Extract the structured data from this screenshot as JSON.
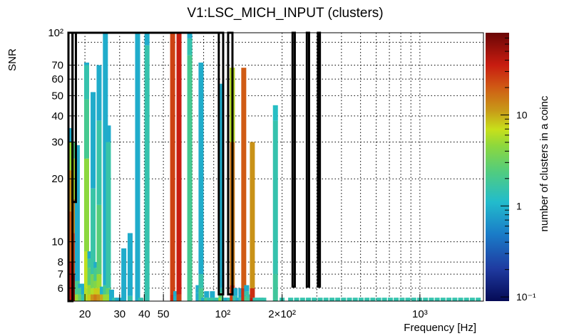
{
  "chart_data": {
    "type": "heatmap",
    "title": "V1:LSC_MICH_INPUT (clusters)",
    "xlabel": "Frequency [Hz]",
    "ylabel": "SNR",
    "zlabel": "number of clusters in a coinc",
    "x_scale": "log",
    "y_scale": "log",
    "z_scale": "log",
    "xlim": [
      16.5,
      2100
    ],
    "ylim": [
      5.2,
      100
    ],
    "zlim": [
      0.09,
      80
    ],
    "grid": true,
    "x_ticks": [
      {
        "value": 20,
        "label": "20"
      },
      {
        "value": 30,
        "label": "30"
      },
      {
        "value": 40,
        "label": "40"
      },
      {
        "value": 50,
        "label": "50"
      },
      {
        "value": 100,
        "label": "10²"
      },
      {
        "value": 200,
        "label": "2×10²"
      },
      {
        "value": 1000,
        "label": "10³"
      }
    ],
    "y_ticks": [
      {
        "value": 6,
        "label": "6"
      },
      {
        "value": 7,
        "label": "7"
      },
      {
        "value": 8,
        "label": "8"
      },
      {
        "value": 10,
        "label": "10"
      },
      {
        "value": 20,
        "label": "20"
      },
      {
        "value": 30,
        "label": "30"
      },
      {
        "value": 40,
        "label": "40"
      },
      {
        "value": 50,
        "label": "50"
      },
      {
        "value": 60,
        "label": "60"
      },
      {
        "value": 70,
        "label": "70"
      },
      {
        "value": 100,
        "label": "10²"
      }
    ],
    "z_ticks": [
      {
        "value": 0.1,
        "label": "10⁻¹"
      },
      {
        "value": 1,
        "label": "1"
      },
      {
        "value": 10,
        "label": "10"
      }
    ],
    "columns": [
      {
        "f": 17.0,
        "segments": [
          [
            5.2,
            8,
            40
          ],
          [
            8,
            14,
            20
          ],
          [
            14,
            22,
            12
          ],
          [
            22,
            30,
            5
          ],
          [
            30,
            35,
            0.9
          ]
        ]
      },
      {
        "f": 17.6,
        "segments": [
          [
            5.2,
            7,
            70
          ],
          [
            7,
            11,
            25
          ],
          [
            11,
            16,
            14
          ],
          [
            16,
            25,
            6
          ],
          [
            25,
            30,
            2.5
          ]
        ]
      },
      {
        "f": 18.3,
        "segments": [
          [
            5.2,
            5.6,
            5
          ],
          [
            5.6,
            6.5,
            2
          ],
          [
            6.5,
            29,
            0.9
          ]
        ]
      },
      {
        "f": 19.0,
        "segments": [
          [
            5.2,
            5.6,
            3
          ],
          [
            5.6,
            6,
            2
          ],
          [
            6,
            6.3,
            0.9
          ]
        ]
      },
      {
        "f": 19.7,
        "segments": [
          [
            5.2,
            5.6,
            1.5
          ],
          [
            5.6,
            6.3,
            0.9
          ]
        ]
      },
      {
        "f": 20.4,
        "segments": [
          [
            5.2,
            6,
            6
          ],
          [
            6,
            9,
            6.5
          ],
          [
            9,
            25,
            4.5
          ],
          [
            25,
            48,
            2
          ],
          [
            48,
            70,
            1.5
          ],
          [
            70,
            72,
            0.9
          ]
        ]
      },
      {
        "f": 21.2,
        "segments": [
          [
            5.2,
            5.6,
            8
          ],
          [
            5.6,
            6.2,
            5
          ],
          [
            6.2,
            7.5,
            2.5
          ],
          [
            7.5,
            8.3,
            1.8
          ],
          [
            8.3,
            9,
            0.9
          ]
        ]
      },
      {
        "f": 22.0,
        "segments": [
          [
            5.2,
            5.6,
            12
          ],
          [
            5.6,
            6,
            6
          ],
          [
            6,
            7,
            3.5
          ],
          [
            7,
            18,
            1.6
          ],
          [
            18,
            52,
            0.9
          ]
        ]
      },
      {
        "f": 22.8,
        "segments": [
          [
            5.2,
            5.6,
            15
          ],
          [
            5.6,
            6,
            8
          ],
          [
            6,
            6.5,
            4
          ],
          [
            6.5,
            7.5,
            2
          ],
          [
            7.5,
            8,
            0.9
          ]
        ]
      },
      {
        "f": 23.6,
        "segments": [
          [
            5.2,
            5.6,
            12
          ],
          [
            5.6,
            6,
            8
          ],
          [
            6,
            7,
            5
          ],
          [
            7,
            15,
            2.5
          ],
          [
            15,
            38,
            1.6
          ],
          [
            38,
            70,
            0.9
          ]
        ]
      },
      {
        "f": 24.5,
        "segments": [
          [
            5.2,
            5.6,
            10
          ],
          [
            5.6,
            6.1,
            1
          ]
        ]
      },
      {
        "f": 25.4,
        "segments": [
          [
            5.2,
            5.6,
            5
          ],
          [
            5.6,
            6.2,
            2
          ],
          [
            6.2,
            100,
            0.9
          ]
        ]
      },
      {
        "f": 26.3,
        "segments": [
          [
            5.2,
            5.6,
            5
          ],
          [
            5.6,
            6,
            3
          ],
          [
            6,
            30,
            1.6
          ],
          [
            30,
            36,
            0.9
          ]
        ]
      },
      {
        "f": 27.3,
        "segments": [
          [
            5.2,
            5.9,
            0.9
          ]
        ]
      },
      {
        "f": 28.3,
        "segments": [
          [
            5.2,
            5.4,
            1.5
          ]
        ]
      },
      {
        "f": 29.3,
        "segments": [
          [
            5.2,
            5.4,
            0.9
          ]
        ]
      },
      {
        "f": 30.4,
        "segments": [
          [
            5.2,
            5.4,
            0.9
          ]
        ]
      },
      {
        "f": 31.5,
        "segments": [
          [
            5.2,
            9.3,
            0.9
          ]
        ]
      },
      {
        "f": 33.9,
        "segments": [
          [
            5.2,
            5.5,
            1.5
          ],
          [
            5.5,
            11,
            0.9
          ]
        ]
      },
      {
        "f": 37.0,
        "segments": [
          [
            5.2,
            100,
            0.9
          ]
        ]
      },
      {
        "f": 38.4,
        "segments": [
          [
            5.2,
            5.4,
            1.5
          ]
        ]
      },
      {
        "f": 41.3,
        "segments": [
          [
            5.2,
            87,
            1.5
          ],
          [
            87,
            100,
            0.9
          ]
        ]
      },
      {
        "f": 55.7,
        "segments": [
          [
            5.2,
            5.6,
            30
          ],
          [
            5.6,
            100,
            25
          ]
        ]
      },
      {
        "f": 57.8,
        "segments": [
          [
            5.2,
            5.8,
            1.0
          ],
          [
            5.8,
            5.5,
            0.9
          ]
        ]
      },
      {
        "f": 60.0,
        "segments": [
          [
            5.2,
            5.6,
            25
          ],
          [
            5.6,
            100,
            35
          ]
        ]
      },
      {
        "f": 68.0,
        "segments": [
          [
            5.2,
            78,
            2
          ],
          [
            78,
            94,
            1.5
          ],
          [
            94,
            100,
            0.9
          ]
        ]
      },
      {
        "f": 75.0,
        "segments": [
          [
            5.2,
            5.7,
            0.9
          ],
          [
            5.7,
            6.2,
            0.9
          ]
        ]
      },
      {
        "f": 77.6,
        "segments": [
          [
            5.2,
            6,
            2
          ],
          [
            6,
            7,
            1.5
          ],
          [
            7,
            72,
            0.9
          ]
        ]
      },
      {
        "f": 80.0,
        "segments": [
          [
            5.2,
            5.4,
            0.9
          ]
        ]
      },
      {
        "f": 82.8,
        "segments": [
          [
            5.2,
            5.4,
            2
          ],
          [
            5.4,
            5.8,
            0.9
          ]
        ]
      },
      {
        "f": 85.7,
        "segments": [
          [
            5.2,
            5.4,
            1.5
          ]
        ]
      },
      {
        "f": 88.6,
        "segments": [
          [
            5.2,
            5.4,
            1.8
          ],
          [
            5.4,
            5.8,
            0.9
          ]
        ]
      },
      {
        "f": 91.6,
        "segments": [
          [
            5.2,
            5.4,
            1.5
          ]
        ]
      },
      {
        "f": 94.7,
        "segments": [
          [
            5.2,
            5.4,
            1.5
          ]
        ]
      },
      {
        "f": 97.9,
        "segments": [
          [
            5.2,
            5.4,
            5
          ],
          [
            5.4,
            5.7,
            2.5
          ],
          [
            5.7,
            6,
            1.5
          ],
          [
            6,
            57,
            0.9
          ]
        ]
      },
      {
        "f": 101.2,
        "segments": [
          [
            5.2,
            5.4,
            1.5
          ]
        ]
      },
      {
        "f": 104.6,
        "segments": [
          [
            5.2,
            5.4,
            0.9
          ]
        ]
      },
      {
        "f": 108.2,
        "segments": [
          [
            5.2,
            5.4,
            1.5
          ]
        ]
      },
      {
        "f": 111.8,
        "segments": [
          [
            5.2,
            6.2,
            25
          ],
          [
            6.2,
            68,
            15
          ],
          [
            68,
            30,
            6
          ]
        ]
      },
      {
        "f": 115.6,
        "segments": [
          [
            5.2,
            5.5,
            1.5
          ],
          [
            5.5,
            6,
            0.9
          ]
        ]
      },
      {
        "f": 119.5,
        "segments": [
          [
            5.2,
            5.4,
            0.9
          ]
        ]
      },
      {
        "f": 123.6,
        "segments": [
          [
            5.2,
            5.4,
            1.5
          ],
          [
            5.4,
            5.6,
            0.9
          ],
          [
            5.6,
            6,
            0.9
          ]
        ]
      },
      {
        "f": 127.8,
        "segments": [
          [
            5.2,
            6,
            30
          ],
          [
            6,
            68,
            20
          ]
        ]
      },
      {
        "f": 132.2,
        "segments": [
          [
            5.2,
            5.5,
            2
          ],
          [
            5.5,
            5.8,
            1.5
          ],
          [
            5.8,
            6.2,
            0.9
          ]
        ]
      },
      {
        "f": 136.7,
        "segments": [
          [
            5.2,
            5.4,
            1.8
          ],
          [
            5.4,
            5.6,
            1.5
          ]
        ]
      },
      {
        "f": 141.3,
        "segments": [
          [
            5.2,
            5.4,
            40
          ],
          [
            5.4,
            6,
            30
          ],
          [
            6,
            30,
            12
          ]
        ]
      },
      {
        "f": 146.1,
        "segments": [
          [
            5.2,
            5.4,
            1.5
          ]
        ]
      },
      {
        "f": 151.1,
        "segments": [
          [
            5.2,
            5.4,
            1.5
          ]
        ]
      },
      {
        "f": 156.2,
        "segments": [
          [
            5.2,
            5.4,
            1.5
          ]
        ]
      },
      {
        "f": 161.5,
        "segments": [
          [
            5.2,
            5.4,
            1.5
          ]
        ]
      },
      {
        "f": 185.0,
        "segments": [
          [
            5.2,
            7,
            1.8
          ],
          [
            7,
            38,
            1.5
          ],
          [
            38,
            45,
            1.2
          ]
        ]
      },
      {
        "f": 200.0,
        "segments": [
          [
            5.2,
            5.4,
            1.5
          ]
        ]
      },
      {
        "f": 221.0,
        "segments": [
          [
            5.2,
            5.4,
            1.5
          ]
        ]
      },
      {
        "f": 237.0,
        "segments": [
          [
            5.2,
            5.4,
            1.5
          ]
        ]
      },
      {
        "f": 254.0,
        "segments": [
          [
            5.2,
            5.4,
            1.5
          ]
        ]
      },
      {
        "f": 272.0,
        "segments": [
          [
            5.2,
            5.4,
            1.5
          ]
        ]
      },
      {
        "f": 291.0,
        "segments": [
          [
            5.2,
            5.4,
            1.5
          ]
        ]
      },
      {
        "f": 312.0,
        "segments": [
          [
            5.2,
            5.4,
            1.5
          ]
        ]
      },
      {
        "f": 334.0,
        "segments": [
          [
            5.2,
            5.4,
            1.5
          ]
        ]
      },
      {
        "f": 358.0,
        "segments": [
          [
            5.2,
            5.4,
            1.5
          ]
        ]
      },
      {
        "f": 383.0,
        "segments": [
          [
            5.2,
            5.4,
            1.5
          ]
        ]
      },
      {
        "f": 410.0,
        "segments": [
          [
            5.2,
            5.4,
            1.5
          ]
        ]
      },
      {
        "f": 439.0,
        "segments": [
          [
            5.2,
            5.4,
            1.5
          ]
        ]
      },
      {
        "f": 470.0,
        "segments": [
          [
            5.2,
            5.4,
            1.5
          ]
        ]
      },
      {
        "f": 503.0,
        "segments": [
          [
            5.2,
            5.4,
            1.5
          ]
        ]
      },
      {
        "f": 539.0,
        "segments": [
          [
            5.2,
            5.4,
            1.5
          ]
        ]
      },
      {
        "f": 577.0,
        "segments": [
          [
            5.2,
            5.4,
            1.5
          ]
        ]
      },
      {
        "f": 618.0,
        "segments": [
          [
            5.2,
            5.4,
            1.5
          ]
        ]
      },
      {
        "f": 661.0,
        "segments": [
          [
            5.2,
            5.4,
            1.5
          ]
        ]
      },
      {
        "f": 708.0,
        "segments": [
          [
            5.2,
            5.4,
            1.5
          ]
        ]
      },
      {
        "f": 758.0,
        "segments": [
          [
            5.2,
            5.4,
            1.5
          ]
        ]
      },
      {
        "f": 812.0,
        "segments": [
          [
            5.2,
            5.4,
            1.5
          ]
        ]
      },
      {
        "f": 869.0,
        "segments": [
          [
            5.2,
            5.4,
            1.5
          ]
        ]
      },
      {
        "f": 931.0,
        "segments": [
          [
            5.2,
            5.4,
            1.5
          ]
        ]
      },
      {
        "f": 997.0,
        "segments": [
          [
            5.2,
            5.4,
            1.5
          ]
        ]
      },
      {
        "f": 1067.0,
        "segments": [
          [
            5.2,
            5.4,
            1.5
          ]
        ]
      },
      {
        "f": 1143.0,
        "segments": [
          [
            5.2,
            5.4,
            1.5
          ]
        ]
      },
      {
        "f": 1224.0,
        "segments": [
          [
            5.2,
            5.4,
            1.5
          ]
        ]
      },
      {
        "f": 1310.0,
        "segments": [
          [
            5.2,
            5.4,
            1.5
          ]
        ]
      },
      {
        "f": 1403.0,
        "segments": [
          [
            5.2,
            5.4,
            1.5
          ]
        ]
      },
      {
        "f": 1503.0,
        "segments": [
          [
            5.2,
            5.4,
            1.5
          ]
        ]
      },
      {
        "f": 1609.0,
        "segments": [
          [
            5.2,
            5.4,
            1.5
          ]
        ]
      },
      {
        "f": 1723.0,
        "segments": [
          [
            5.2,
            5.4,
            1.5
          ]
        ]
      },
      {
        "f": 1845.0,
        "segments": [
          [
            5.2,
            5.4,
            1.5
          ]
        ]
      },
      {
        "f": 1976.0,
        "segments": [
          [
            5.2,
            5.4,
            1.5
          ]
        ]
      }
    ],
    "outlines": [
      {
        "f_lo": 16.5,
        "f_hi": 17.3,
        "snr_lo": 5.2,
        "snr_hi": 100
      },
      {
        "f_lo": 17.3,
        "f_hi": 18.0,
        "snr_lo": 15.5,
        "snr_hi": 100
      },
      {
        "f_lo": 18.0,
        "f_hi": 95.5,
        "snr_lo": 100,
        "snr_hi": 100
      },
      {
        "f_lo": 95.5,
        "f_hi": 100.5,
        "snr_lo": 5.6,
        "snr_hi": 100
      },
      {
        "f_lo": 106.5,
        "f_hi": 112.0,
        "snr_lo": 5.6,
        "snr_hi": 100
      },
      {
        "f_lo": 226.0,
        "f_hi": 232.0,
        "snr_lo": 6.1,
        "snr_hi": 100
      },
      {
        "f_lo": 267.0,
        "f_hi": 274.0,
        "snr_lo": 6.1,
        "snr_hi": 100
      },
      {
        "f_lo": 304.0,
        "f_hi": 311.0,
        "snr_lo": 6.1,
        "snr_hi": 100
      }
    ]
  }
}
